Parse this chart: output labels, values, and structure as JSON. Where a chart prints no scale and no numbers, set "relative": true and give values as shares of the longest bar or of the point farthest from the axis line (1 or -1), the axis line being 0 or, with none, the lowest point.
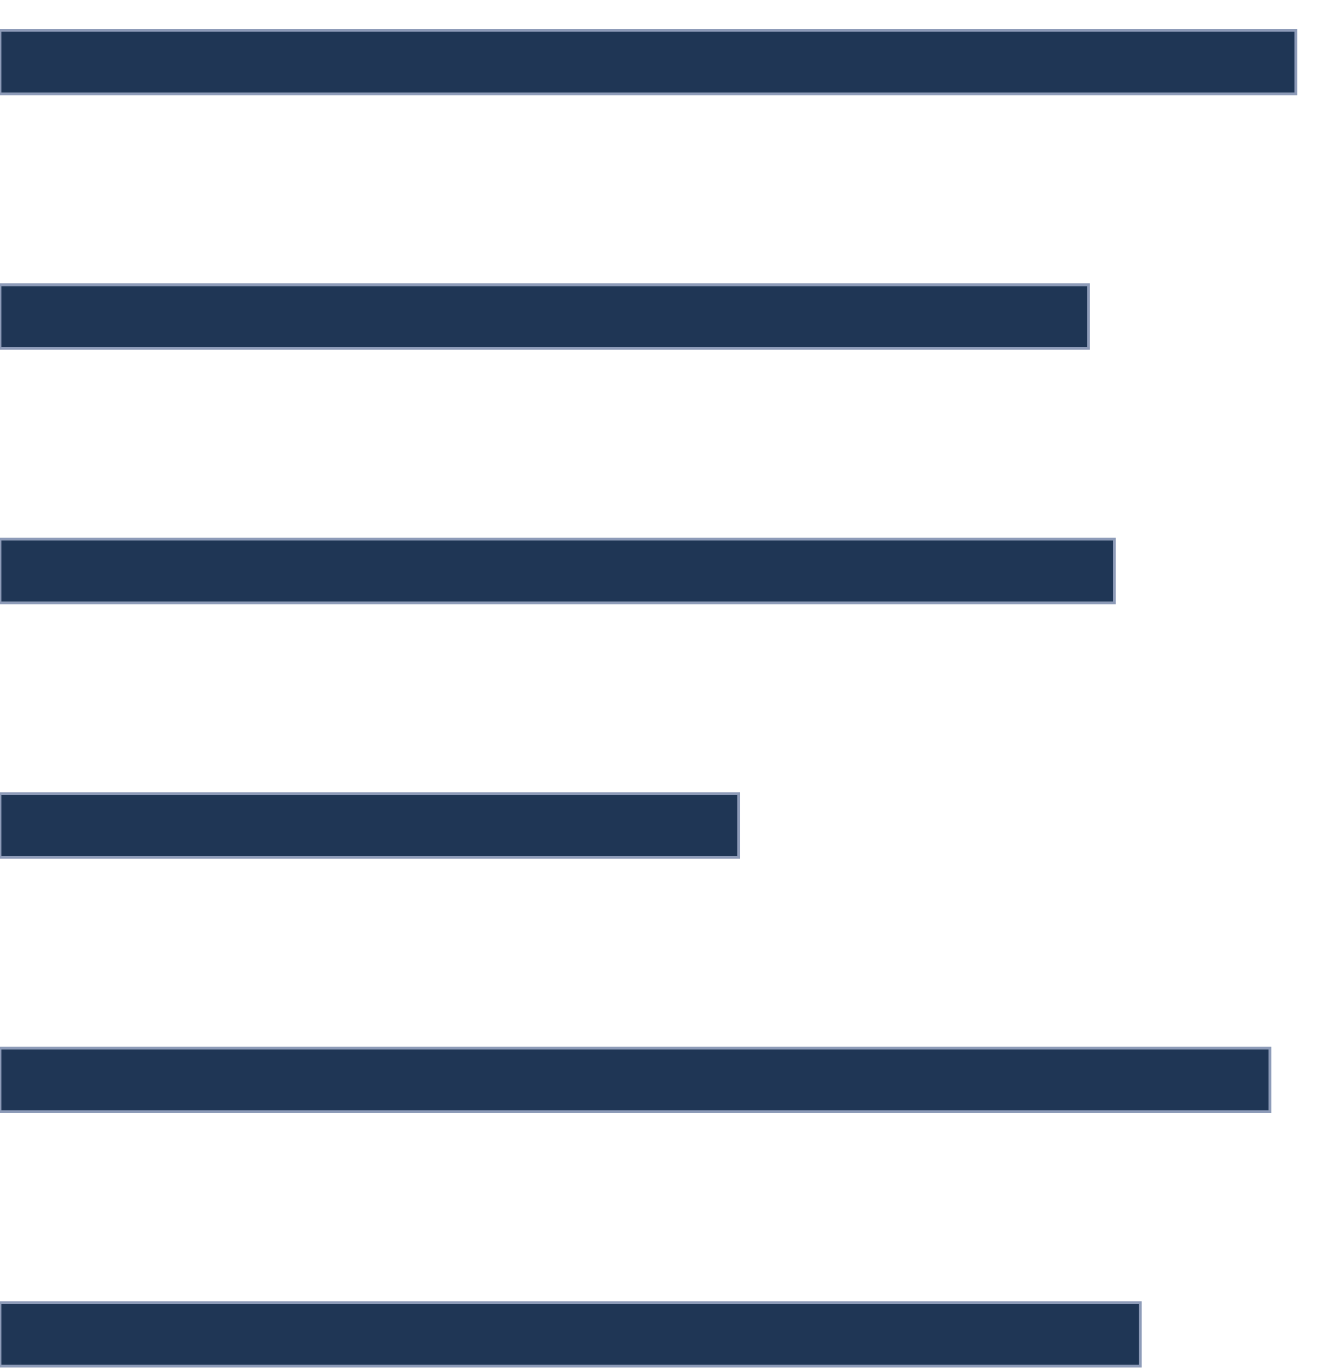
{
  "chart_data": {
    "type": "bar",
    "orientation": "horizontal",
    "relative": true,
    "categories": [
      null,
      null,
      null,
      null,
      null,
      null
    ],
    "values": [
      1,
      0.84,
      0.86,
      0.57,
      0.98,
      0.88
    ],
    "color": "#1f3655"
  }
}
